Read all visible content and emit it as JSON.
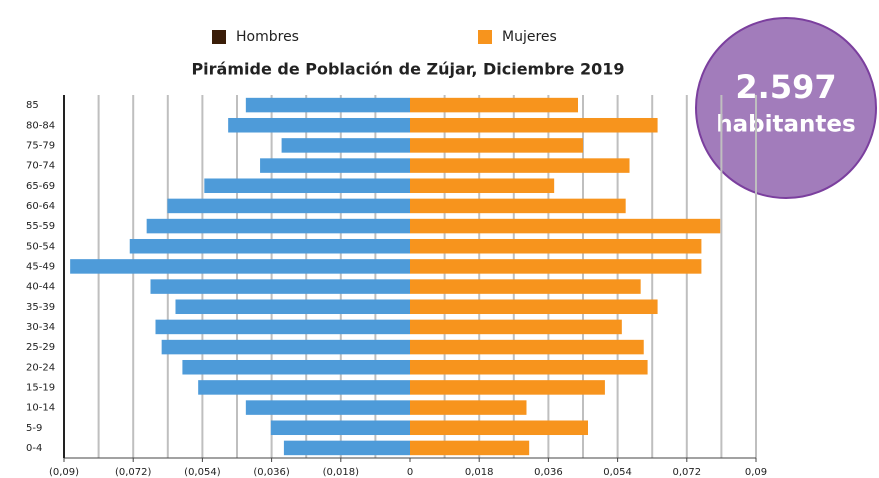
{
  "chart_data": {
    "type": "pyramid",
    "title": "Pirámide de Población de Zújar, Diciembre 2019",
    "annotations": [
      "2.597",
      "habitantes"
    ],
    "categories": [
      "85",
      "80-84",
      "75-79",
      "70-74",
      "65-69",
      "60-64",
      "55-59",
      "50-54",
      "45-49",
      "40-44",
      "35-39",
      "30-34",
      "25-29",
      "20-24",
      "15-19",
      "10-14",
      "5-9",
      "0-4"
    ],
    "series": [
      {
        "name": "Hombres",
        "color": "#4e9bd9",
        "legend_color": "#3a1d08",
        "values": [
          -0.0427,
          -0.0473,
          -0.0334,
          -0.039,
          -0.0535,
          -0.0631,
          -0.0685,
          -0.0729,
          -0.0884,
          -0.0675,
          -0.061,
          -0.0662,
          -0.0646,
          -0.0592,
          -0.0551,
          -0.0427,
          -0.0362,
          -0.0328
        ]
      },
      {
        "name": "Mujeres",
        "color": "#f7941d",
        "legend_color": "#f7941d",
        "values": [
          0.0437,
          0.0644,
          0.045,
          0.0571,
          0.0375,
          0.0561,
          0.0807,
          0.0758,
          0.0758,
          0.06,
          0.0644,
          0.0551,
          0.0608,
          0.0618,
          0.0507,
          0.0303,
          0.0463,
          0.031
        ]
      }
    ],
    "xlim": [
      -0.09,
      0.09
    ],
    "xticks": [
      {
        "value": -0.09,
        "label": "(0,09)"
      },
      {
        "value": -0.072,
        "label": "(0,072)"
      },
      {
        "value": -0.054,
        "label": "(0,054)"
      },
      {
        "value": -0.036,
        "label": "(0,036)"
      },
      {
        "value": -0.018,
        "label": "(0,018)"
      },
      0,
      {
        "value": 0.018,
        "label": "0,018"
      },
      {
        "value": 0.036,
        "label": "0,036"
      },
      {
        "value": 0.054,
        "label": "0,054"
      },
      {
        "value": 0.072,
        "label": "0,072"
      },
      {
        "value": 0.09,
        "label": "0,09"
      }
    ],
    "xgrid": [
      -0.081,
      -0.072,
      -0.063,
      -0.054,
      -0.045,
      -0.036,
      -0.027,
      -0.018,
      -0.009,
      0.009,
      0.018,
      0.027,
      0.036,
      0.045,
      0.054,
      0.063,
      0.072,
      0.081,
      0.09
    ],
    "grid": true
  }
}
